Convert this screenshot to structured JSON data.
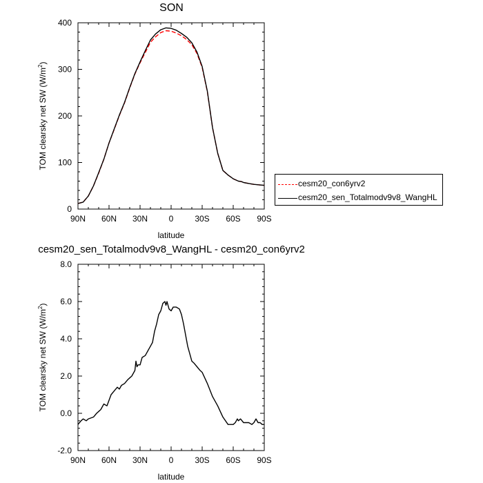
{
  "chart_data": [
    {
      "type": "line",
      "title": "SON",
      "xlabel": "latitude",
      "ylabel_main": "TOM clearsky net SW (W/m",
      "ylabel_sup": "2",
      "ylabel_tail": ")",
      "x_ticks": [
        -90,
        -60,
        -30,
        0,
        30,
        60,
        90
      ],
      "x_tick_labels": [
        "90N",
        "60N",
        "30N",
        "0",
        "30S",
        "60S",
        "90S"
      ],
      "xlim": [
        -90,
        90
      ],
      "ylim": [
        0,
        400
      ],
      "y_ticks": [
        0,
        100,
        200,
        300,
        400
      ],
      "y_tick_labels": [
        "0",
        "100",
        "200",
        "300",
        "400"
      ],
      "grid": false,
      "legend_position": "right",
      "series": [
        {
          "name": "cesm20_con6yrv2",
          "color": "#ff0000",
          "dash": "dashed",
          "x": [
            -90,
            -85,
            -80,
            -75,
            -70,
            -65,
            -60,
            -55,
            -50,
            -45,
            -40,
            -35,
            -30,
            -25,
            -20,
            -15,
            -10,
            -5,
            0,
            5,
            10,
            15,
            20,
            25,
            30,
            35,
            40,
            45,
            50,
            55,
            60,
            63,
            65,
            68,
            70,
            75,
            80,
            85,
            90
          ],
          "y": [
            12,
            15,
            28,
            50,
            77,
            107,
            142,
            171,
            201,
            228,
            260,
            290,
            314,
            336,
            358,
            370,
            379,
            383,
            382,
            378,
            372,
            364,
            353,
            334,
            304,
            252,
            175,
            120,
            83,
            73,
            65,
            62,
            60,
            59,
            57,
            55,
            53,
            52,
            51
          ]
        },
        {
          "name": "cesm20_sen_Totalmodv9v8_WangHL",
          "color": "#000000",
          "dash": "solid",
          "x": [
            -90,
            -85,
            -80,
            -75,
            -70,
            -65,
            -60,
            -55,
            -50,
            -45,
            -40,
            -35,
            -30,
            -25,
            -20,
            -15,
            -10,
            -5,
            0,
            5,
            10,
            15,
            20,
            25,
            30,
            35,
            40,
            45,
            50,
            55,
            60,
            63,
            65,
            68,
            70,
            75,
            80,
            85,
            90
          ],
          "y": [
            12,
            15,
            28,
            50,
            78,
            107,
            142,
            172,
            202,
            229,
            261,
            291,
            316,
            340,
            363,
            376,
            385,
            389,
            388,
            384,
            377,
            369,
            357,
            337,
            306,
            253,
            175,
            120,
            83,
            73,
            65,
            62,
            60,
            59,
            57,
            55,
            53,
            52,
            51
          ]
        }
      ]
    },
    {
      "type": "line",
      "title": "cesm20_sen_Totalmodv9v8_WangHL - cesm20_con6yrv2",
      "xlabel": "latitude",
      "ylabel_main": "TOM clearsky net SW (W/m",
      "ylabel_sup": "2",
      "ylabel_tail": ")",
      "x_ticks": [
        -90,
        -60,
        -30,
        0,
        30,
        60,
        90
      ],
      "x_tick_labels": [
        "90N",
        "60N",
        "30N",
        "0",
        "30S",
        "60S",
        "90S"
      ],
      "xlim": [
        -90,
        90
      ],
      "ylim": [
        -2.0,
        8.0
      ],
      "y_ticks": [
        -2.0,
        0.0,
        2.0,
        4.0,
        6.0,
        8.0
      ],
      "y_tick_labels": [
        "-2.0",
        "0.0",
        "2.0",
        "4.0",
        "6.0",
        "8.0"
      ],
      "grid": false,
      "series": [
        {
          "color": "#000000",
          "dash": "solid",
          "x": [
            -90,
            -87,
            -85,
            -82,
            -80,
            -75,
            -72,
            -70,
            -68,
            -65,
            -62,
            -60,
            -58,
            -55,
            -52,
            -50,
            -48,
            -45,
            -42,
            -40,
            -38,
            -36,
            -35,
            -34,
            -33,
            -32,
            -30,
            -28,
            -25,
            -22,
            -20,
            -18,
            -16,
            -14,
            -12,
            -10,
            -8,
            -6,
            -5,
            -4,
            -2,
            0,
            2,
            5,
            8,
            10,
            12,
            14,
            16,
            18,
            20,
            22,
            25,
            28,
            30,
            35,
            40,
            45,
            50,
            55,
            58,
            60,
            62,
            63,
            64,
            65,
            67,
            70,
            75,
            78,
            80,
            82,
            84,
            85,
            86,
            88,
            90
          ],
          "y": [
            -0.6,
            -0.4,
            -0.3,
            -0.4,
            -0.3,
            -0.2,
            0.0,
            0.1,
            0.2,
            0.5,
            0.4,
            0.7,
            1.0,
            1.2,
            1.4,
            1.3,
            1.5,
            1.6,
            1.8,
            1.9,
            2.0,
            2.2,
            2.3,
            2.8,
            2.5,
            2.6,
            2.6,
            3.0,
            3.1,
            3.4,
            3.6,
            3.8,
            4.4,
            4.8,
            5.3,
            5.5,
            5.9,
            6.0,
            5.8,
            6.0,
            5.6,
            5.5,
            5.7,
            5.7,
            5.6,
            5.3,
            4.8,
            4.2,
            3.6,
            3.2,
            2.8,
            2.7,
            2.5,
            2.3,
            2.2,
            1.6,
            0.9,
            0.4,
            -0.2,
            -0.6,
            -0.6,
            -0.6,
            -0.5,
            -0.4,
            -0.3,
            -0.4,
            -0.3,
            -0.5,
            -0.5,
            -0.6,
            -0.5,
            -0.3,
            -0.5,
            -0.5,
            -0.5,
            -0.6,
            -0.6
          ]
        }
      ]
    }
  ]
}
